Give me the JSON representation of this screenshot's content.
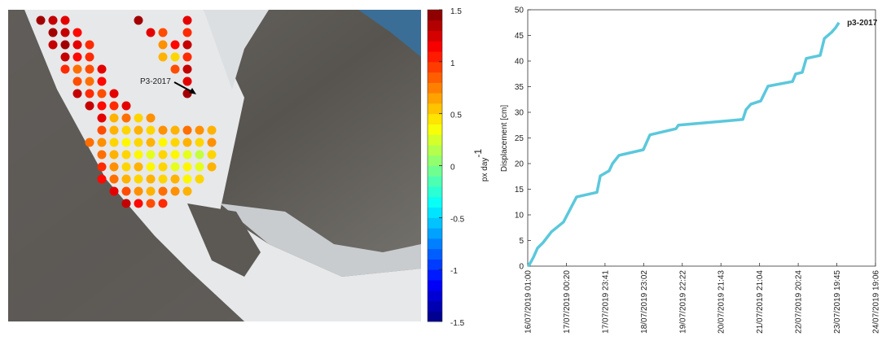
{
  "chart_data": [
    {
      "type": "heatmap",
      "annotation": "P3-2017",
      "colorbar_label": "px day",
      "colorbar_label_sup": "-1",
      "clim": [
        -1.5,
        1.5
      ],
      "cticks": [
        1.5,
        1,
        0.5,
        0,
        -0.5,
        -1,
        -1.5
      ],
      "values": [
        [
          1.4,
          1.3,
          1.2,
          null,
          null,
          null,
          null,
          null,
          1.4,
          null,
          null,
          null,
          1.2,
          null,
          null,
          null,
          null,
          null
        ],
        [
          null,
          1.4,
          1.3,
          1.1,
          null,
          null,
          null,
          null,
          null,
          1.2,
          0.9,
          null,
          1.0,
          null,
          null,
          null,
          null,
          null
        ],
        [
          null,
          1.3,
          1.4,
          1.2,
          1.0,
          null,
          null,
          null,
          null,
          null,
          0.7,
          1.1,
          1.3,
          null,
          null,
          null,
          null,
          null
        ],
        [
          null,
          null,
          1.3,
          1.1,
          1.0,
          null,
          null,
          null,
          null,
          null,
          0.6,
          0.5,
          1.0,
          null,
          null,
          null,
          null,
          null
        ],
        [
          null,
          null,
          1.0,
          0.8,
          0.9,
          1.2,
          null,
          null,
          null,
          null,
          null,
          0.9,
          1.3,
          null,
          null,
          null,
          null,
          null
        ],
        [
          null,
          null,
          null,
          0.9,
          0.8,
          1.1,
          null,
          null,
          null,
          null,
          null,
          null,
          1.2,
          null,
          null,
          null,
          null,
          null
        ],
        [
          null,
          null,
          null,
          1.3,
          1.0,
          0.9,
          1.2,
          null,
          null,
          null,
          null,
          null,
          1.4,
          null,
          null,
          null,
          null,
          null
        ],
        [
          null,
          null,
          null,
          null,
          1.3,
          1.1,
          1.0,
          1.2,
          null,
          null,
          null,
          null,
          null,
          null,
          null,
          null,
          null,
          null
        ],
        [
          null,
          null,
          null,
          null,
          null,
          1.2,
          0.6,
          0.8,
          0.5,
          0.7,
          null,
          null,
          null,
          null,
          null,
          null,
          null,
          null
        ],
        [
          null,
          null,
          null,
          null,
          null,
          0.9,
          0.6,
          0.5,
          0.6,
          0.5,
          0.7,
          0.6,
          0.8,
          0.7,
          0.6,
          null,
          null,
          null
        ],
        [
          null,
          null,
          null,
          null,
          0.8,
          0.7,
          0.5,
          0.4,
          0.5,
          0.6,
          0.4,
          0.5,
          0.6,
          0.5,
          0.7,
          null,
          null,
          null
        ],
        [
          null,
          null,
          null,
          null,
          null,
          0.8,
          0.6,
          0.5,
          0.4,
          0.3,
          0.5,
          0.4,
          0.3,
          0.2,
          0.5,
          null,
          null,
          null
        ],
        [
          null,
          null,
          null,
          null,
          null,
          1.0,
          0.7,
          0.5,
          0.6,
          0.4,
          0.5,
          0.3,
          0.4,
          0.3,
          0.6,
          null,
          null,
          null
        ],
        [
          null,
          null,
          null,
          null,
          null,
          1.1,
          0.8,
          0.6,
          0.5,
          0.6,
          0.5,
          0.6,
          0.4,
          0.5,
          null,
          null,
          null,
          null
        ],
        [
          null,
          null,
          null,
          null,
          null,
          null,
          1.2,
          0.9,
          0.7,
          0.6,
          0.8,
          0.7,
          0.6,
          null,
          null,
          null,
          null,
          null
        ],
        [
          null,
          null,
          null,
          null,
          null,
          null,
          null,
          1.3,
          1.1,
          0.9,
          1.0,
          null,
          null,
          null,
          null,
          null,
          null,
          null
        ]
      ]
    },
    {
      "type": "line",
      "ylabel": "Displacement [cm]",
      "annotation": "p3-2017",
      "color": "#5bc8dc",
      "x": [
        0,
        1.0,
        3.4,
        5.9,
        9.3,
        14.3,
        21.6,
        29.5,
        41.8,
        43.8,
        49.2,
        51.2,
        55.1,
        69.8,
        71.3,
        73.8,
        89.5,
        91.0,
        129.9,
        131.8,
        134.8,
        140.7,
        145.1,
        159.9,
        161.8,
        165.8,
        168.2,
        176.6,
        179.1,
        183.5,
        185.9,
        187.9
      ],
      "values": [
        0,
        0.3,
        1.7,
        3.5,
        4.6,
        6.7,
        8.6,
        13.5,
        14.4,
        17.6,
        18.6,
        20,
        21.6,
        22.7,
        23.8,
        25.6,
        26.8,
        27.5,
        28.6,
        30.5,
        31.6,
        32.2,
        35.1,
        36,
        37.5,
        37.8,
        40.5,
        41.1,
        44.4,
        45.6,
        46.5,
        47.5
      ],
      "xlim": [
        0,
        210
      ],
      "xticks": [
        {
          "value": 0,
          "label": "16/07/2019 01:00"
        },
        {
          "value": 23.333,
          "label": "17/07/2019 00:20"
        },
        {
          "value": 46.667,
          "label": "17/07/2019 23:41"
        },
        {
          "value": 70,
          "label": "18/07/2019 23:02"
        },
        {
          "value": 93.333,
          "label": "19/07/2019 22:22"
        },
        {
          "value": 116.667,
          "label": "20/07/2019 21:43"
        },
        {
          "value": 140,
          "label": "21/07/2019 21:04"
        },
        {
          "value": 163.333,
          "label": "22/07/2019 20:24"
        },
        {
          "value": 186.667,
          "label": "23/07/2019 19:45"
        },
        {
          "value": 210,
          "label": "24/07/2019 19:06"
        }
      ],
      "ylim": [
        0,
        50
      ],
      "yticks": [
        0,
        5,
        10,
        15,
        20,
        25,
        30,
        35,
        40,
        45,
        50
      ]
    }
  ]
}
